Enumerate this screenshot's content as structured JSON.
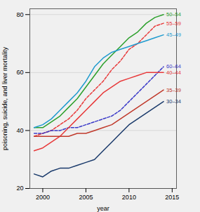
{
  "chart_data": {
    "type": "line",
    "xlabel": "year",
    "ylabel": "poisoning, suicide, and liver mortality",
    "x": [
      1999,
      2000,
      2001,
      2002,
      2003,
      2004,
      2005,
      2006,
      2007,
      2008,
      2009,
      2010,
      2011,
      2012,
      2013,
      2014
    ],
    "series": [
      {
        "name": "50–54",
        "color": "#2ca02c",
        "line_style": "solid",
        "values": [
          41,
          41,
          43,
          45,
          48,
          51,
          55,
          59,
          63,
          66,
          69,
          72,
          74,
          77,
          79,
          80
        ]
      },
      {
        "name": "55–59",
        "color": "#e8393a",
        "line_style": "dashed",
        "values": [
          38,
          39,
          40,
          42,
          44,
          47,
          51,
          54,
          57,
          61,
          64,
          68,
          70,
          73,
          76,
          77
        ]
      },
      {
        "name": "45–49",
        "color": "#1f9bcf",
        "line_style": "solid",
        "values": [
          41,
          42,
          44,
          47,
          50,
          53,
          57,
          62,
          65,
          67,
          68,
          69,
          70,
          71,
          72,
          73
        ]
      },
      {
        "name": "60–64",
        "color": "#3a3ac8",
        "line_style": "dashed",
        "values": [
          39,
          39,
          40,
          40,
          41,
          41,
          42,
          43,
          44,
          45,
          47,
          50,
          53,
          56,
          59,
          62
        ]
      },
      {
        "name": "40–44",
        "color": "#e8393a",
        "line_style": "solid",
        "values": [
          33,
          34,
          36,
          38,
          41,
          44,
          47,
          50,
          53,
          55,
          57,
          58,
          59,
          60,
          60,
          60
        ]
      },
      {
        "name": "35–39",
        "color": "#c0392b",
        "line_style": "solid",
        "values": [
          38,
          38,
          38,
          38,
          38,
          39,
          39,
          40,
          41,
          42,
          44,
          46,
          48,
          50,
          52,
          54
        ]
      },
      {
        "name": "30–34",
        "color": "#1a3a6b",
        "line_style": "solid",
        "values": [
          25,
          24,
          26,
          27,
          27,
          28,
          29,
          30,
          33,
          36,
          39,
          42,
          44,
          46,
          48,
          50
        ]
      }
    ],
    "xlim": [
      1998.5,
      2015.5
    ],
    "ylim": [
      20,
      82
    ],
    "xticks": [
      2000,
      2005,
      2010,
      2015
    ],
    "yticks": [
      20,
      40,
      60,
      80
    ],
    "grid": "y"
  }
}
